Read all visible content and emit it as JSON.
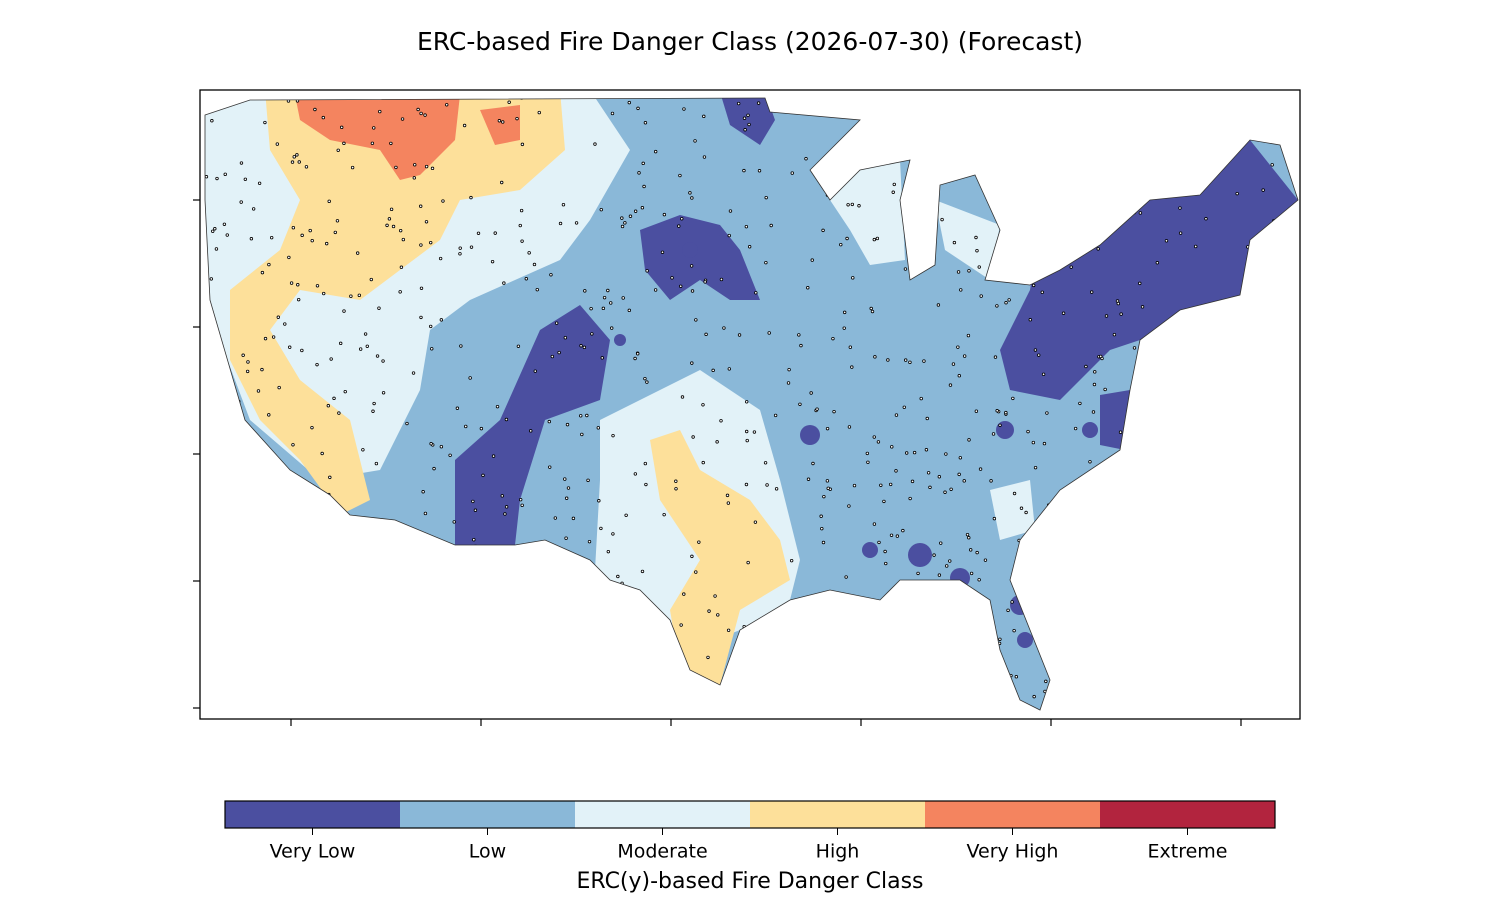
{
  "title": "ERC-based Fire Danger Class (2026-07-30) (Forecast)",
  "colorbar": {
    "label": "ERC(y)-based Fire Danger Class",
    "classes": [
      {
        "name": "Very Low",
        "color": "#4b4fa0"
      },
      {
        "name": "Low",
        "color": "#8ab8d8"
      },
      {
        "name": "Moderate",
        "color": "#e2f2f8"
      },
      {
        "name": "High",
        "color": "#fde09a"
      },
      {
        "name": "Very High",
        "color": "#f4845f"
      },
      {
        "name": "Extreme",
        "color": "#b2243e"
      }
    ]
  }
}
